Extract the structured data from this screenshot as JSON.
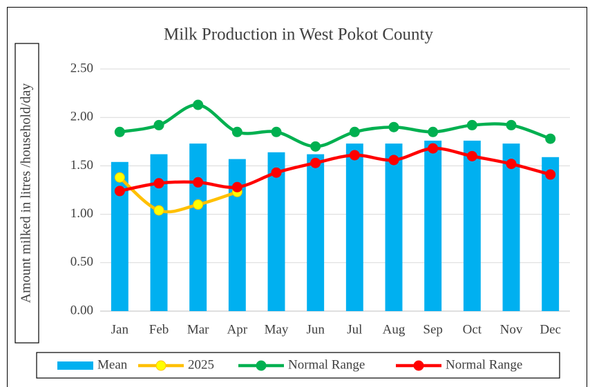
{
  "chart_data": {
    "type": "bar",
    "title": "Milk Production in West Pokot County",
    "y_label": "Amount milked in litres /household/day",
    "categories": [
      "Jan",
      "Feb",
      "Mar",
      "Apr",
      "May",
      "Jun",
      "Jul",
      "Aug",
      "Sep",
      "Oct",
      "Nov",
      "Dec"
    ],
    "series": [
      {
        "name": "Mean",
        "type": "bar",
        "color": "#00b0f0",
        "values": [
          1.54,
          1.62,
          1.73,
          1.57,
          1.64,
          1.62,
          1.73,
          1.73,
          1.76,
          1.76,
          1.73,
          1.59
        ]
      },
      {
        "name": "2025",
        "type": "line",
        "color": "#ffc000",
        "marker_color": "#ffff00",
        "values": [
          1.38,
          1.04,
          1.1,
          1.23,
          null,
          null,
          null,
          null,
          null,
          null,
          null,
          null
        ]
      },
      {
        "name": "Normal Range",
        "type": "line",
        "color": "#00b050",
        "marker_color": "#00b050",
        "values": [
          1.85,
          1.92,
          2.13,
          1.85,
          1.85,
          1.7,
          1.85,
          1.9,
          1.85,
          1.92,
          1.92,
          1.78
        ]
      },
      {
        "name": "Normal Range",
        "type": "line",
        "color": "#ff0000",
        "marker_color": "#ff0000",
        "values": [
          1.24,
          1.32,
          1.33,
          1.28,
          1.43,
          1.53,
          1.61,
          1.56,
          1.68,
          1.6,
          1.52,
          1.41
        ]
      }
    ],
    "ylim": [
      0,
      2.5
    ],
    "yticks": [
      {
        "value": 0,
        "label": "0.00"
      },
      {
        "value": 0.5,
        "label": "0.50"
      },
      {
        "value": 1,
        "label": "1.00"
      },
      {
        "value": 1.5,
        "label": "1.50"
      },
      {
        "value": 2,
        "label": "2.00"
      },
      {
        "value": 2.5,
        "label": "2.50"
      }
    ],
    "grid": true,
    "legend": "bottom"
  }
}
